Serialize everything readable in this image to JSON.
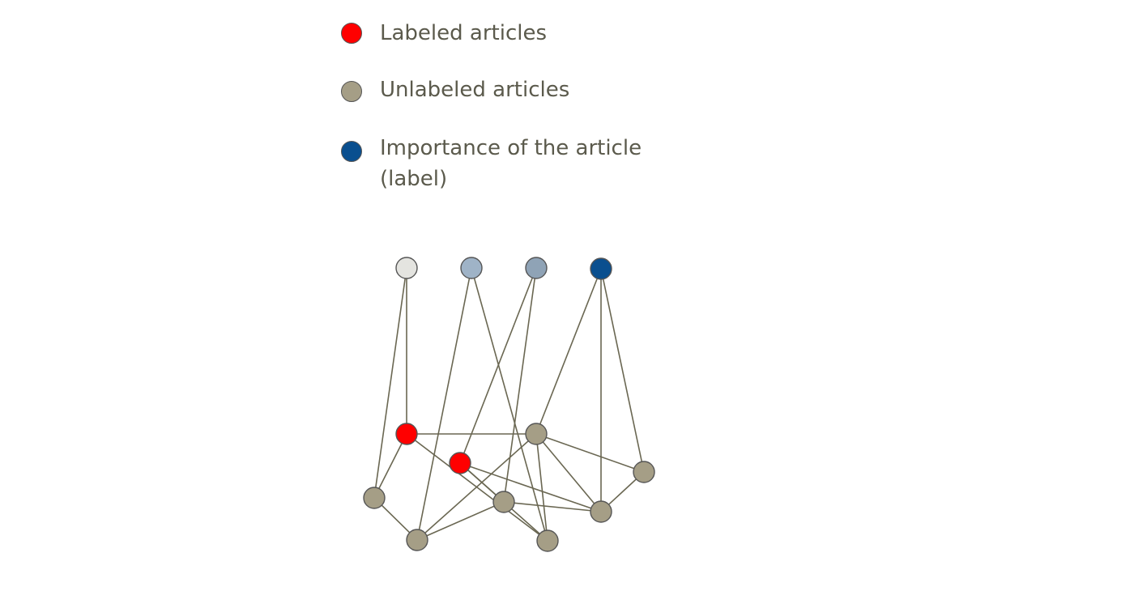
{
  "legend": {
    "items": [
      {
        "label": "Labeled articles",
        "color": "#ff0000",
        "icon": "red-node-icon"
      },
      {
        "label": "Unlabeled articles",
        "color": "#a59e86",
        "icon": "tan-node-icon"
      },
      {
        "label": "Importance of the article\n(label)",
        "color": "#0a4f8f",
        "icon": "blue-node-icon"
      }
    ]
  },
  "graph": {
    "nodes": [
      {
        "id": "L1",
        "kind": "label",
        "color": "#e4e4e0"
      },
      {
        "id": "L2",
        "kind": "label",
        "color": "#9fb3c7"
      },
      {
        "id": "L3",
        "kind": "label",
        "color": "#8fa3b6"
      },
      {
        "id": "L4",
        "kind": "label",
        "color": "#0a4f8f"
      },
      {
        "id": "R1",
        "kind": "labeled",
        "color": "#ff0000"
      },
      {
        "id": "R2",
        "kind": "labeled",
        "color": "#ff0000"
      },
      {
        "id": "U1",
        "kind": "unlabeled",
        "color": "#a59e86"
      },
      {
        "id": "U2",
        "kind": "unlabeled",
        "color": "#a59e86"
      },
      {
        "id": "U3",
        "kind": "unlabeled",
        "color": "#a59e86"
      },
      {
        "id": "U4",
        "kind": "unlabeled",
        "color": "#a59e86"
      },
      {
        "id": "U5",
        "kind": "unlabeled",
        "color": "#a59e86"
      },
      {
        "id": "U6",
        "kind": "unlabeled",
        "color": "#a59e86"
      },
      {
        "id": "U7",
        "kind": "unlabeled",
        "color": "#a59e86"
      },
      {
        "id": "U8",
        "kind": "unlabeled",
        "color": "#a59e86"
      }
    ],
    "edges": [
      [
        "L1",
        "R1"
      ],
      [
        "L1",
        "U1"
      ],
      [
        "L2",
        "U2"
      ],
      [
        "L2",
        "U8"
      ],
      [
        "L3",
        "U3"
      ],
      [
        "L3",
        "R2"
      ],
      [
        "L4",
        "U4"
      ],
      [
        "L4",
        "U5"
      ],
      [
        "L4",
        "U6"
      ],
      [
        "R1",
        "U1"
      ],
      [
        "R1",
        "U8"
      ],
      [
        "R1",
        "U4"
      ],
      [
        "R2",
        "U8"
      ],
      [
        "R2",
        "U5"
      ],
      [
        "R2",
        "U3"
      ],
      [
        "U1",
        "U2"
      ],
      [
        "U2",
        "U3"
      ],
      [
        "U2",
        "U4"
      ],
      [
        "U3",
        "U5"
      ],
      [
        "U4",
        "U8"
      ],
      [
        "U4",
        "U5"
      ],
      [
        "U4",
        "U6"
      ],
      [
        "U5",
        "U6"
      ]
    ],
    "edge_color": "#6a6752",
    "node_stroke": "#555555"
  }
}
